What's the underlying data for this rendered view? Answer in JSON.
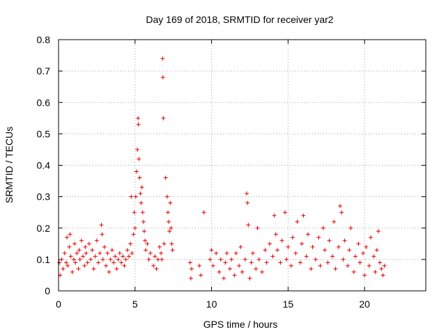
{
  "chart_data": {
    "type": "scatter",
    "title": "Day 169 of 2018, SRMTID for receiver yar2",
    "xlabel": "GPS time / hours",
    "ylabel": "SRMTID / TECUs",
    "xlim": [
      0,
      24
    ],
    "ylim": [
      0,
      0.8
    ],
    "x_ticks": [
      "0",
      "5",
      "10",
      "15",
      "20"
    ],
    "y_ticks": [
      "0",
      "0.1",
      "0.2",
      "0.3",
      "0.4",
      "0.5",
      "0.6",
      "0.7",
      "0.8"
    ],
    "grid": true,
    "marker": "+",
    "marker_color": "#e00000",
    "series": [
      {
        "name": "SRMTID",
        "points": [
          [
            0.05,
            0.09
          ],
          [
            0.1,
            0.05
          ],
          [
            0.2,
            0.1
          ],
          [
            0.3,
            0.07
          ],
          [
            0.4,
            0.12
          ],
          [
            0.5,
            0.09
          ],
          [
            0.55,
            0.17
          ],
          [
            0.6,
            0.08
          ],
          [
            0.7,
            0.14
          ],
          [
            0.75,
            0.18
          ],
          [
            0.8,
            0.11
          ],
          [
            0.9,
            0.06
          ],
          [
            1.0,
            0.1
          ],
          [
            1.05,
            0.15
          ],
          [
            1.1,
            0.09
          ],
          [
            1.2,
            0.12
          ],
          [
            1.3,
            0.07
          ],
          [
            1.35,
            0.13
          ],
          [
            1.4,
            0.1
          ],
          [
            1.5,
            0.16
          ],
          [
            1.6,
            0.11
          ],
          [
            1.7,
            0.08
          ],
          [
            1.75,
            0.14
          ],
          [
            1.8,
            0.12
          ],
          [
            1.9,
            0.09
          ],
          [
            2.0,
            0.15
          ],
          [
            2.1,
            0.1
          ],
          [
            2.2,
            0.13
          ],
          [
            2.3,
            0.07
          ],
          [
            2.4,
            0.11
          ],
          [
            2.5,
            0.16
          ],
          [
            2.6,
            0.09
          ],
          [
            2.7,
            0.12
          ],
          [
            2.8,
            0.21
          ],
          [
            2.85,
            0.18
          ],
          [
            2.9,
            0.1
          ],
          [
            3.0,
            0.14
          ],
          [
            3.1,
            0.08
          ],
          [
            3.2,
            0.12
          ],
          [
            3.3,
            0.06
          ],
          [
            3.4,
            0.1
          ],
          [
            3.5,
            0.13
          ],
          [
            3.6,
            0.09
          ],
          [
            3.7,
            0.11
          ],
          [
            3.8,
            0.07
          ],
          [
            3.9,
            0.1
          ],
          [
            4.0,
            0.12
          ],
          [
            4.1,
            0.09
          ],
          [
            4.2,
            0.11
          ],
          [
            4.3,
            0.08
          ],
          [
            4.4,
            0.1
          ],
          [
            4.5,
            0.13
          ],
          [
            4.6,
            0.11
          ],
          [
            4.7,
            0.15
          ],
          [
            4.75,
            0.3
          ],
          [
            4.8,
            0.12
          ],
          [
            4.9,
            0.18
          ],
          [
            4.95,
            0.25
          ],
          [
            5.0,
            0.2
          ],
          [
            5.05,
            0.3
          ],
          [
            5.1,
            0.38
          ],
          [
            5.15,
            0.45
          ],
          [
            5.2,
            0.55
          ],
          [
            5.22,
            0.53
          ],
          [
            5.25,
            0.42
          ],
          [
            5.3,
            0.36
          ],
          [
            5.35,
            0.31
          ],
          [
            5.4,
            0.28
          ],
          [
            5.45,
            0.33
          ],
          [
            5.5,
            0.25
          ],
          [
            5.55,
            0.22
          ],
          [
            5.6,
            0.19
          ],
          [
            5.65,
            0.16
          ],
          [
            5.7,
            0.13
          ],
          [
            5.8,
            0.15
          ],
          [
            5.9,
            0.1
          ],
          [
            6.0,
            0.12
          ],
          [
            6.2,
            0.08
          ],
          [
            6.3,
            0.11
          ],
          [
            6.4,
            0.07
          ],
          [
            6.5,
            0.1
          ],
          [
            6.6,
            0.14
          ],
          [
            6.7,
            0.12
          ],
          [
            6.75,
            0.1
          ],
          [
            6.8,
            0.74
          ],
          [
            6.82,
            0.68
          ],
          [
            6.85,
            0.55
          ],
          [
            6.9,
            0.15
          ],
          [
            7.0,
            0.36
          ],
          [
            7.1,
            0.3
          ],
          [
            7.15,
            0.25
          ],
          [
            7.2,
            0.22
          ],
          [
            7.25,
            0.19
          ],
          [
            7.3,
            0.28
          ],
          [
            7.35,
            0.2
          ],
          [
            7.4,
            0.15
          ],
          [
            7.45,
            0.13
          ],
          [
            8.6,
            0.09
          ],
          [
            8.65,
            0.04
          ],
          [
            8.7,
            0.07
          ],
          [
            9.2,
            0.08
          ],
          [
            9.3,
            0.05
          ],
          [
            9.5,
            0.25
          ],
          [
            9.9,
            0.1
          ],
          [
            10.0,
            0.13
          ],
          [
            10.1,
            0.08
          ],
          [
            10.3,
            0.12
          ],
          [
            10.5,
            0.06
          ],
          [
            10.6,
            0.1
          ],
          [
            10.8,
            0.04
          ],
          [
            10.9,
            0.09
          ],
          [
            11.0,
            0.12
          ],
          [
            11.2,
            0.07
          ],
          [
            11.3,
            0.1
          ],
          [
            11.5,
            0.05
          ],
          [
            11.6,
            0.12
          ],
          [
            11.8,
            0.08
          ],
          [
            11.9,
            0.14
          ],
          [
            12.0,
            0.06
          ],
          [
            12.2,
            0.1
          ],
          [
            12.3,
            0.31
          ],
          [
            12.35,
            0.28
          ],
          [
            12.4,
            0.21
          ],
          [
            12.5,
            0.04
          ],
          [
            12.6,
            0.09
          ],
          [
            12.7,
            0.12
          ],
          [
            12.9,
            0.07
          ],
          [
            13.0,
            0.2
          ],
          [
            13.1,
            0.1
          ],
          [
            13.3,
            0.06
          ],
          [
            13.5,
            0.13
          ],
          [
            13.6,
            0.09
          ],
          [
            13.8,
            0.15
          ],
          [
            14.0,
            0.11
          ],
          [
            14.1,
            0.24
          ],
          [
            14.2,
            0.18
          ],
          [
            14.3,
            0.13
          ],
          [
            14.5,
            0.09
          ],
          [
            14.6,
            0.16
          ],
          [
            14.8,
            0.25
          ],
          [
            14.9,
            0.1
          ],
          [
            15.0,
            0.14
          ],
          [
            15.2,
            0.08
          ],
          [
            15.3,
            0.17
          ],
          [
            15.5,
            0.12
          ],
          [
            15.6,
            0.22
          ],
          [
            15.8,
            0.09
          ],
          [
            15.9,
            0.15
          ],
          [
            16.0,
            0.24
          ],
          [
            16.2,
            0.11
          ],
          [
            16.3,
            0.18
          ],
          [
            16.5,
            0.07
          ],
          [
            16.6,
            0.14
          ],
          [
            16.8,
            0.1
          ],
          [
            17.0,
            0.17
          ],
          [
            17.1,
            0.08
          ],
          [
            17.3,
            0.2
          ],
          [
            17.4,
            0.13
          ],
          [
            17.6,
            0.09
          ],
          [
            17.7,
            0.16
          ],
          [
            17.9,
            0.11
          ],
          [
            18.0,
            0.22
          ],
          [
            18.1,
            0.07
          ],
          [
            18.3,
            0.14
          ],
          [
            18.4,
            0.27
          ],
          [
            18.5,
            0.25
          ],
          [
            18.6,
            0.1
          ],
          [
            18.7,
            0.16
          ],
          [
            18.9,
            0.08
          ],
          [
            19.0,
            0.13
          ],
          [
            19.1,
            0.2
          ],
          [
            19.3,
            0.06
          ],
          [
            19.4,
            0.11
          ],
          [
            19.6,
            0.15
          ],
          [
            19.7,
            0.09
          ],
          [
            19.9,
            0.12
          ],
          [
            20.0,
            0.05
          ],
          [
            20.1,
            0.14
          ],
          [
            20.3,
            0.08
          ],
          [
            20.4,
            0.17
          ],
          [
            20.6,
            0.11
          ],
          [
            20.7,
            0.06
          ],
          [
            20.8,
            0.13
          ],
          [
            20.9,
            0.19
          ],
          [
            21.0,
            0.09
          ],
          [
            21.1,
            0.07
          ],
          [
            21.2,
            0.05
          ],
          [
            21.3,
            0.08
          ]
        ]
      }
    ]
  }
}
